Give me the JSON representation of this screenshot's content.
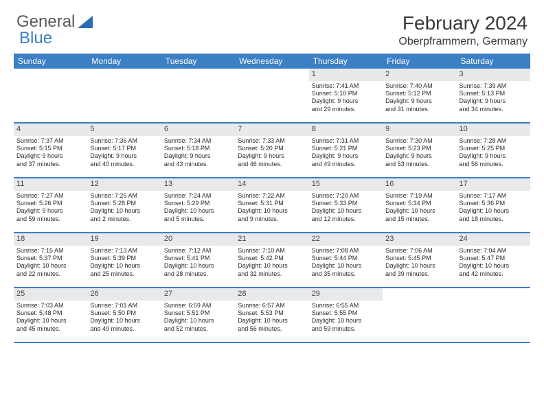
{
  "logo": {
    "text1": "General",
    "text2": "Blue"
  },
  "title": "February 2024",
  "location": "Oberpframmern, Germany",
  "colors": {
    "header_bg": "#3b7fc4",
    "header_text": "#ffffff",
    "daynum_bg": "#e8e9ea",
    "border": "#3b7fc4",
    "body_text": "#2a2a2a"
  },
  "weekdays": [
    "Sunday",
    "Monday",
    "Tuesday",
    "Wednesday",
    "Thursday",
    "Friday",
    "Saturday"
  ],
  "weeks": [
    [
      null,
      null,
      null,
      null,
      {
        "n": "1",
        "sr": "Sunrise: 7:41 AM",
        "ss": "Sunset: 5:10 PM",
        "d1": "Daylight: 9 hours",
        "d2": "and 29 minutes."
      },
      {
        "n": "2",
        "sr": "Sunrise: 7:40 AM",
        "ss": "Sunset: 5:12 PM",
        "d1": "Daylight: 9 hours",
        "d2": "and 31 minutes."
      },
      {
        "n": "3",
        "sr": "Sunrise: 7:39 AM",
        "ss": "Sunset: 5:13 PM",
        "d1": "Daylight: 9 hours",
        "d2": "and 34 minutes."
      }
    ],
    [
      {
        "n": "4",
        "sr": "Sunrise: 7:37 AM",
        "ss": "Sunset: 5:15 PM",
        "d1": "Daylight: 9 hours",
        "d2": "and 37 minutes."
      },
      {
        "n": "5",
        "sr": "Sunrise: 7:36 AM",
        "ss": "Sunset: 5:17 PM",
        "d1": "Daylight: 9 hours",
        "d2": "and 40 minutes."
      },
      {
        "n": "6",
        "sr": "Sunrise: 7:34 AM",
        "ss": "Sunset: 5:18 PM",
        "d1": "Daylight: 9 hours",
        "d2": "and 43 minutes."
      },
      {
        "n": "7",
        "sr": "Sunrise: 7:33 AM",
        "ss": "Sunset: 5:20 PM",
        "d1": "Daylight: 9 hours",
        "d2": "and 46 minutes."
      },
      {
        "n": "8",
        "sr": "Sunrise: 7:31 AM",
        "ss": "Sunset: 5:21 PM",
        "d1": "Daylight: 9 hours",
        "d2": "and 49 minutes."
      },
      {
        "n": "9",
        "sr": "Sunrise: 7:30 AM",
        "ss": "Sunset: 5:23 PM",
        "d1": "Daylight: 9 hours",
        "d2": "and 53 minutes."
      },
      {
        "n": "10",
        "sr": "Sunrise: 7:28 AM",
        "ss": "Sunset: 5:25 PM",
        "d1": "Daylight: 9 hours",
        "d2": "and 56 minutes."
      }
    ],
    [
      {
        "n": "11",
        "sr": "Sunrise: 7:27 AM",
        "ss": "Sunset: 5:26 PM",
        "d1": "Daylight: 9 hours",
        "d2": "and 59 minutes."
      },
      {
        "n": "12",
        "sr": "Sunrise: 7:25 AM",
        "ss": "Sunset: 5:28 PM",
        "d1": "Daylight: 10 hours",
        "d2": "and 2 minutes."
      },
      {
        "n": "13",
        "sr": "Sunrise: 7:24 AM",
        "ss": "Sunset: 5:29 PM",
        "d1": "Daylight: 10 hours",
        "d2": "and 5 minutes."
      },
      {
        "n": "14",
        "sr": "Sunrise: 7:22 AM",
        "ss": "Sunset: 5:31 PM",
        "d1": "Daylight: 10 hours",
        "d2": "and 9 minutes."
      },
      {
        "n": "15",
        "sr": "Sunrise: 7:20 AM",
        "ss": "Sunset: 5:33 PM",
        "d1": "Daylight: 10 hours",
        "d2": "and 12 minutes."
      },
      {
        "n": "16",
        "sr": "Sunrise: 7:19 AM",
        "ss": "Sunset: 5:34 PM",
        "d1": "Daylight: 10 hours",
        "d2": "and 15 minutes."
      },
      {
        "n": "17",
        "sr": "Sunrise: 7:17 AM",
        "ss": "Sunset: 5:36 PM",
        "d1": "Daylight: 10 hours",
        "d2": "and 18 minutes."
      }
    ],
    [
      {
        "n": "18",
        "sr": "Sunrise: 7:15 AM",
        "ss": "Sunset: 5:37 PM",
        "d1": "Daylight: 10 hours",
        "d2": "and 22 minutes."
      },
      {
        "n": "19",
        "sr": "Sunrise: 7:13 AM",
        "ss": "Sunset: 5:39 PM",
        "d1": "Daylight: 10 hours",
        "d2": "and 25 minutes."
      },
      {
        "n": "20",
        "sr": "Sunrise: 7:12 AM",
        "ss": "Sunset: 5:41 PM",
        "d1": "Daylight: 10 hours",
        "d2": "and 28 minutes."
      },
      {
        "n": "21",
        "sr": "Sunrise: 7:10 AM",
        "ss": "Sunset: 5:42 PM",
        "d1": "Daylight: 10 hours",
        "d2": "and 32 minutes."
      },
      {
        "n": "22",
        "sr": "Sunrise: 7:08 AM",
        "ss": "Sunset: 5:44 PM",
        "d1": "Daylight: 10 hours",
        "d2": "and 35 minutes."
      },
      {
        "n": "23",
        "sr": "Sunrise: 7:06 AM",
        "ss": "Sunset: 5:45 PM",
        "d1": "Daylight: 10 hours",
        "d2": "and 39 minutes."
      },
      {
        "n": "24",
        "sr": "Sunrise: 7:04 AM",
        "ss": "Sunset: 5:47 PM",
        "d1": "Daylight: 10 hours",
        "d2": "and 42 minutes."
      }
    ],
    [
      {
        "n": "25",
        "sr": "Sunrise: 7:03 AM",
        "ss": "Sunset: 5:48 PM",
        "d1": "Daylight: 10 hours",
        "d2": "and 45 minutes."
      },
      {
        "n": "26",
        "sr": "Sunrise: 7:01 AM",
        "ss": "Sunset: 5:50 PM",
        "d1": "Daylight: 10 hours",
        "d2": "and 49 minutes."
      },
      {
        "n": "27",
        "sr": "Sunrise: 6:59 AM",
        "ss": "Sunset: 5:51 PM",
        "d1": "Daylight: 10 hours",
        "d2": "and 52 minutes."
      },
      {
        "n": "28",
        "sr": "Sunrise: 6:57 AM",
        "ss": "Sunset: 5:53 PM",
        "d1": "Daylight: 10 hours",
        "d2": "and 56 minutes."
      },
      {
        "n": "29",
        "sr": "Sunrise: 6:55 AM",
        "ss": "Sunset: 5:55 PM",
        "d1": "Daylight: 10 hours",
        "d2": "and 59 minutes."
      },
      null,
      null
    ]
  ]
}
